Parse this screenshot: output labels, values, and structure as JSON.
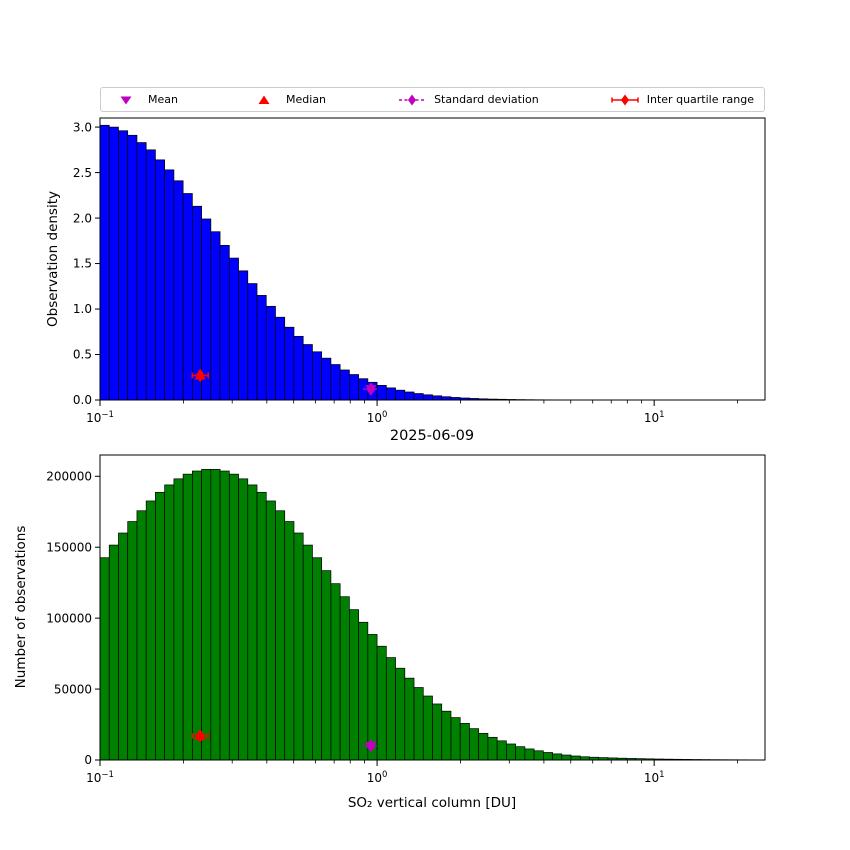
{
  "title": "2025-06-09",
  "legend": {
    "items": [
      {
        "label": "Mean",
        "marker": "triangle-down",
        "color": "#bf00bf"
      },
      {
        "label": "Median",
        "marker": "triangle-up",
        "color": "#ff0000"
      },
      {
        "label": "Standard deviation",
        "marker": "diamond-dashed-line",
        "color": "#bf00bf"
      },
      {
        "label": "Inter quartile range",
        "marker": "diamond-solid-line",
        "color": "#ff0000"
      }
    ]
  },
  "chart_data": [
    {
      "type": "histogram",
      "name": "observation-density-histogram",
      "ylabel": "Observation density",
      "bar_color": "#0000ff",
      "edge_color": "#000000",
      "x_scale": "log",
      "xlim": [
        0.1,
        25.1
      ],
      "x_log_range": [
        -1.0,
        1.4
      ],
      "bin_width_decades": 0.0333333,
      "ylim": [
        0,
        3.1
      ],
      "yticks": [
        0.0,
        0.5,
        1.0,
        1.5,
        2.0,
        2.5,
        3.0
      ],
      "ytick_labels": [
        "0.0",
        "0.5",
        "1.0",
        "1.5",
        "2.0",
        "2.5",
        "3.0"
      ],
      "xtick_positions": [
        -1,
        0,
        1
      ],
      "xtick_base": "10",
      "xtick_exponents": [
        "−1",
        "0",
        "1"
      ],
      "values": [
        3.02,
        3.0,
        2.96,
        2.91,
        2.83,
        2.75,
        2.64,
        2.53,
        2.41,
        2.27,
        2.13,
        1.99,
        1.85,
        1.7,
        1.56,
        1.42,
        1.28,
        1.15,
        1.03,
        0.91,
        0.8,
        0.7,
        0.61,
        0.53,
        0.46,
        0.39,
        0.33,
        0.28,
        0.234,
        0.195,
        0.161,
        0.133,
        0.108,
        0.088,
        0.071,
        0.057,
        0.046,
        0.036,
        0.028,
        0.022,
        0.017,
        0.013,
        0.01,
        0.008,
        0.006,
        0.0045,
        0.0034,
        0.0025,
        0.0019,
        0.0014,
        0.001,
        0.0008,
        0.0006,
        0.0004,
        0.0003,
        0.0003,
        0.0002,
        0.0002,
        0.0001,
        0.0001,
        0.0001,
        0,
        0,
        0,
        0,
        0,
        0,
        0,
        0,
        0,
        0,
        0
      ],
      "markers": [
        {
          "name": "median",
          "shape": "triangle-up",
          "color": "#ff0000",
          "x": 0.23,
          "y": 0.27
        },
        {
          "name": "mean",
          "shape": "triangle-down",
          "color": "#bf00bf",
          "x": 0.95,
          "y": 0.12
        },
        {
          "name": "inter-quartile-range",
          "shape": "diamond",
          "line": "solid",
          "color": "#ff0000",
          "x": 0.23,
          "y": 0.27
        },
        {
          "name": "standard-deviation",
          "shape": "diamond",
          "line": "dashed",
          "color": "#bf00bf",
          "x": 0.95,
          "y": 0.12
        }
      ]
    },
    {
      "type": "histogram",
      "name": "number-of-observations-histogram",
      "ylabel": "Number of observations",
      "xlabel": "SO₂ vertical column [DU]",
      "bar_color": "#008000",
      "edge_color": "#000000",
      "x_scale": "log",
      "xlim": [
        0.1,
        25.1
      ],
      "x_log_range": [
        -1.0,
        1.4
      ],
      "bin_width_decades": 0.0333333,
      "ylim": [
        0,
        215000
      ],
      "yticks": [
        0,
        50000,
        100000,
        150000,
        200000
      ],
      "ytick_labels": [
        "0",
        "50000",
        "100000",
        "150000",
        "200000"
      ],
      "xtick_positions": [
        -1,
        0,
        1
      ],
      "xtick_base": "10",
      "xtick_exponents": [
        "−1",
        "0",
        "1"
      ],
      "values": [
        142600,
        151500,
        160000,
        168100,
        175700,
        182600,
        188700,
        193900,
        198200,
        201500,
        203700,
        204900,
        204900,
        203700,
        201500,
        198200,
        193900,
        188700,
        182600,
        175700,
        168100,
        160000,
        151500,
        142600,
        133500,
        124300,
        115100,
        106000,
        97100,
        88500,
        80200,
        72200,
        64700,
        57700,
        51100,
        45100,
        39500,
        34400,
        29900,
        25800,
        22100,
        18800,
        16000,
        13500,
        11300,
        9400,
        7800,
        6500,
        5300,
        4300,
        3510,
        2830,
        2280,
        1950,
        1700,
        1480,
        1280,
        1100,
        950,
        820,
        700,
        600,
        510,
        430,
        360,
        300,
        250,
        210,
        175,
        145,
        120,
        100
      ],
      "markers": [
        {
          "name": "median",
          "shape": "triangle-up",
          "color": "#ff0000",
          "x": 0.23,
          "y": 17000
        },
        {
          "name": "mean",
          "shape": "triangle-down",
          "color": "#bf00bf",
          "x": 0.95,
          "y": 10000
        },
        {
          "name": "inter-quartile-range",
          "shape": "diamond",
          "line": "solid",
          "color": "#ff0000",
          "x": 0.23,
          "y": 17000
        },
        {
          "name": "standard-deviation",
          "shape": "diamond",
          "line": "dashed",
          "color": "#bf00bf",
          "x": 0.95,
          "y": 10000
        }
      ]
    }
  ]
}
